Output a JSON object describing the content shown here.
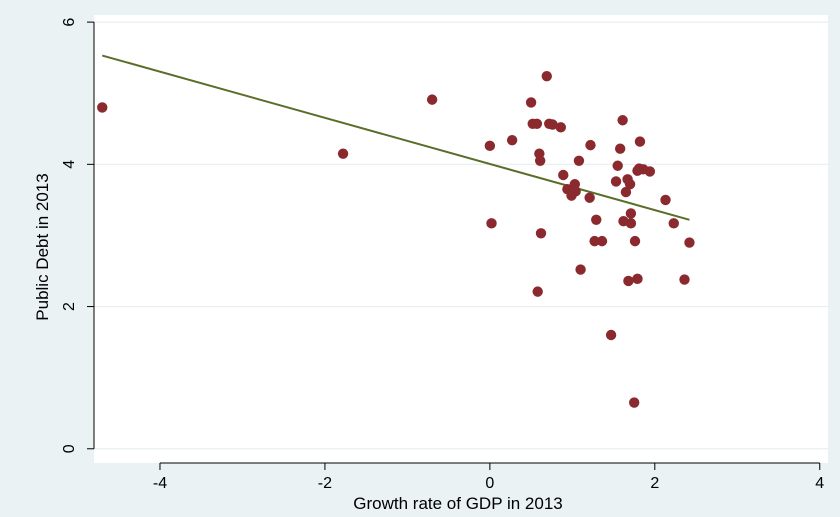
{
  "chart_data": {
    "type": "scatter",
    "xlabel": "Growth rate of GDP in 2013",
    "ylabel": "Public Debt in 2013",
    "xlim": [
      -4.8,
      4.1
    ],
    "ylim": [
      -0.2,
      6.1
    ],
    "xticks": [
      -4,
      -2,
      0,
      2,
      4
    ],
    "yticks": [
      0,
      2,
      4,
      6
    ],
    "grid": "horizontal",
    "colors": {
      "background": "#eaf2f3",
      "plot_area": "#ffffff",
      "grid": "#e8eef0",
      "points": "#8b2a2e",
      "fit_line": "#5a6e2a"
    },
    "series": [
      {
        "type": "scatter",
        "points": [
          [
            -4.7,
            4.8
          ],
          [
            -1.78,
            4.15
          ],
          [
            -0.7,
            4.91
          ],
          [
            0.0,
            4.26
          ],
          [
            0.02,
            3.17
          ],
          [
            0.27,
            4.34
          ],
          [
            0.5,
            4.87
          ],
          [
            0.52,
            4.57
          ],
          [
            0.57,
            4.57
          ],
          [
            0.58,
            2.21
          ],
          [
            0.6,
            4.15
          ],
          [
            0.61,
            4.05
          ],
          [
            0.62,
            3.03
          ],
          [
            0.69,
            5.24
          ],
          [
            0.72,
            4.57
          ],
          [
            0.76,
            4.56
          ],
          [
            0.86,
            4.52
          ],
          [
            0.89,
            3.85
          ],
          [
            0.94,
            3.65
          ],
          [
            0.99,
            3.56
          ],
          [
            1.03,
            3.72
          ],
          [
            1.04,
            3.62
          ],
          [
            1.08,
            4.05
          ],
          [
            1.1,
            2.52
          ],
          [
            1.21,
            3.53
          ],
          [
            1.22,
            4.27
          ],
          [
            1.27,
            2.92
          ],
          [
            1.29,
            3.22
          ],
          [
            1.36,
            2.92
          ],
          [
            1.47,
            1.6
          ],
          [
            1.53,
            3.76
          ],
          [
            1.55,
            3.98
          ],
          [
            1.58,
            4.22
          ],
          [
            1.61,
            4.62
          ],
          [
            1.62,
            3.2
          ],
          [
            1.65,
            3.61
          ],
          [
            1.67,
            3.79
          ],
          [
            1.68,
            2.36
          ],
          [
            1.7,
            3.72
          ],
          [
            1.71,
            3.31
          ],
          [
            1.71,
            3.17
          ],
          [
            1.75,
            0.65
          ],
          [
            1.76,
            2.92
          ],
          [
            1.79,
            3.91
          ],
          [
            1.79,
            2.39
          ],
          [
            1.81,
            3.94
          ],
          [
            1.82,
            4.32
          ],
          [
            1.86,
            3.93
          ],
          [
            1.94,
            3.9
          ],
          [
            2.13,
            3.5
          ],
          [
            2.23,
            3.17
          ],
          [
            2.36,
            2.38
          ],
          [
            2.42,
            2.9
          ]
        ]
      },
      {
        "type": "line",
        "points": [
          [
            -4.7,
            5.53
          ],
          [
            2.42,
            3.22
          ]
        ]
      }
    ]
  }
}
